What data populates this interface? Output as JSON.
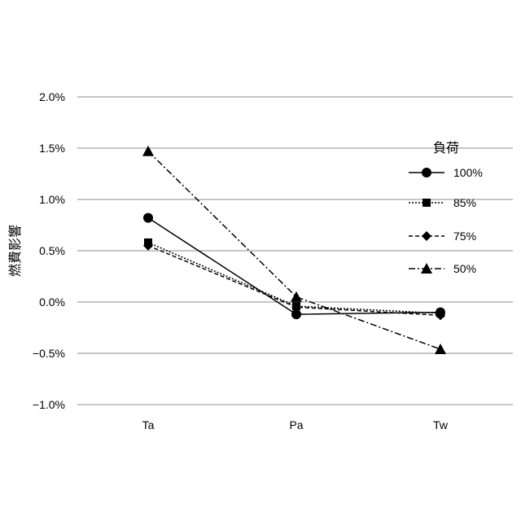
{
  "chart_data": {
    "type": "line",
    "ylabel": "燃費影響",
    "categories": [
      "Ta",
      "Pa",
      "Tw"
    ],
    "y_tick_labels": [
      "2.0%",
      "1.5%",
      "1.0%",
      "0.5%",
      "0.0%",
      "−0.5%",
      "−1.0%"
    ],
    "y_tick_values": [
      2.0,
      1.5,
      1.0,
      0.5,
      0.0,
      -0.5,
      -1.0
    ],
    "ylim": [
      -1.0,
      2.0
    ],
    "grid": true,
    "legend": {
      "title": "負荷",
      "position": "right"
    },
    "series": [
      {
        "name": "100%",
        "marker": "circle",
        "dash": "",
        "values": [
          0.82,
          -0.12,
          -0.1
        ]
      },
      {
        "name": "85%",
        "marker": "square",
        "dash": "2,2",
        "values": [
          0.58,
          -0.04,
          -0.11
        ]
      },
      {
        "name": "75%",
        "marker": "diamond",
        "dash": "5,3",
        "values": [
          0.55,
          -0.05,
          -0.13
        ]
      },
      {
        "name": "50%",
        "marker": "triangle",
        "dash": "8,3,2,3",
        "values": [
          1.47,
          0.05,
          -0.46
        ]
      }
    ]
  }
}
